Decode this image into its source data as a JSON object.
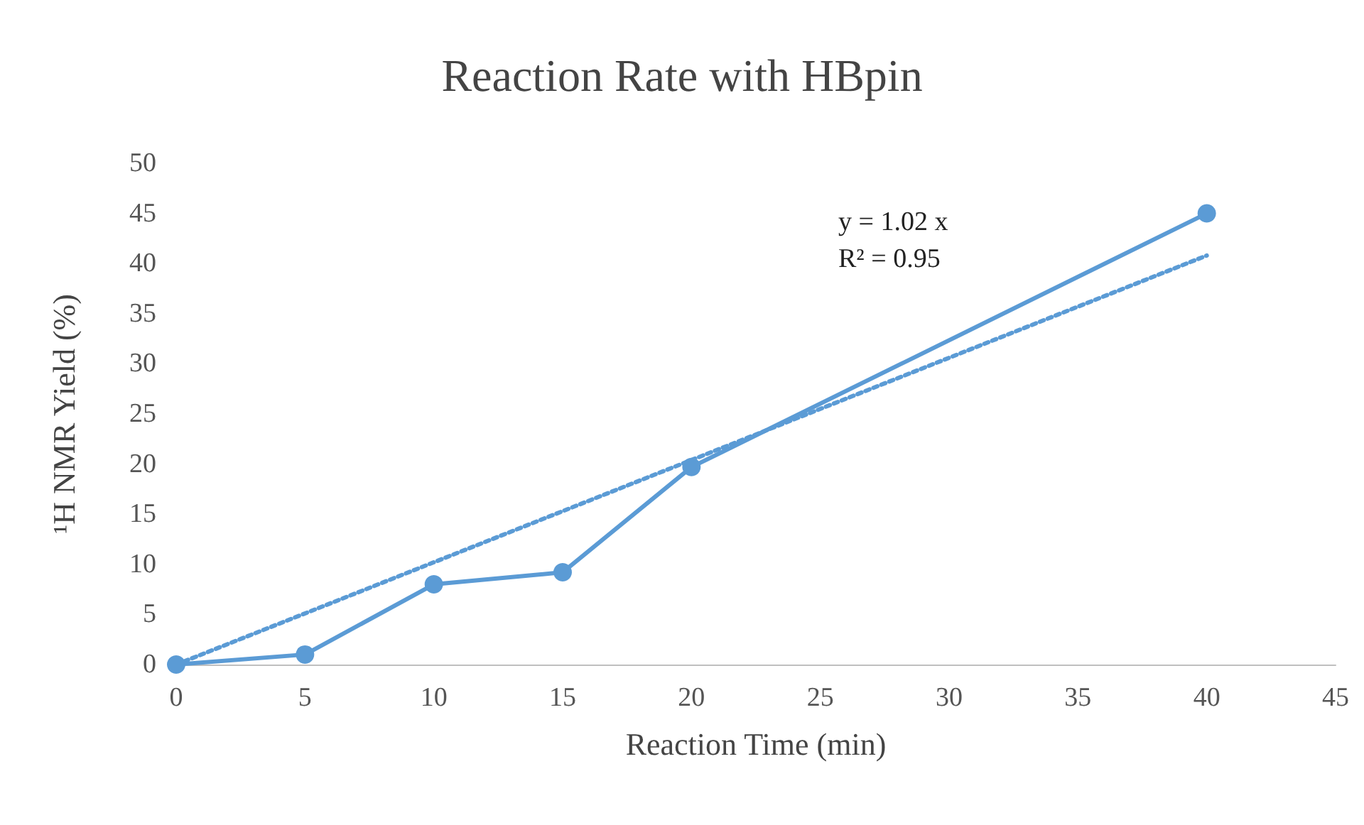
{
  "chart_data": {
    "type": "line",
    "title": "Reaction Rate with HBpin",
    "xlabel": "Reaction Time (min)",
    "ylabel": "¹H NMR Yield (%)",
    "xlim": [
      0,
      45
    ],
    "xticks": [
      0,
      5,
      10,
      15,
      20,
      25,
      30,
      35,
      40,
      45
    ],
    "ylim": [
      0,
      50
    ],
    "yticks": [
      0,
      5,
      10,
      15,
      20,
      25,
      30,
      35,
      40,
      45,
      50
    ],
    "grid": false,
    "marker": "circle",
    "annotations": [
      "y = 1.02 x",
      "R² = 0.95"
    ],
    "series": [
      {
        "color": "#5b9bd5",
        "x": [
          0,
          5,
          10,
          15,
          20,
          40
        ],
        "values": [
          0,
          1,
          8,
          9.2,
          19.7,
          45
        ]
      },
      {
        "type": "line",
        "color": "#5b9bd5",
        "line_style": "dotted",
        "marker": "none",
        "x": [
          0,
          40
        ],
        "values": [
          0,
          40.8
        ]
      }
    ]
  }
}
